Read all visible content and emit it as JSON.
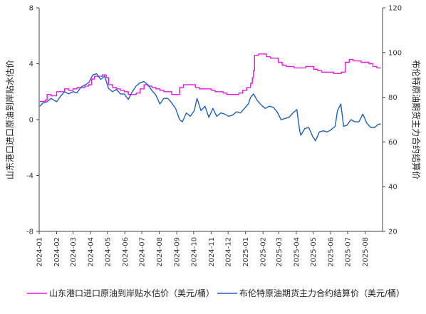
{
  "chart_data": {
    "type": "line",
    "ylabel_left": "山东港口进口原油到岸贴水估价",
    "ylabel_right": "布伦特原油期货主力合约结算价",
    "yleft_range": [
      -8,
      8
    ],
    "yleft_ticks": [
      "8",
      "4",
      "0",
      "-4",
      "-8"
    ],
    "yright_range": [
      20,
      120
    ],
    "yright_ticks": [
      "120",
      "100",
      "80",
      "60",
      "40",
      "20"
    ],
    "x_range": [
      "2024-01-01",
      "2025-09-01"
    ],
    "x_ticks": [
      "2024-01",
      "2024-02",
      "2024-03",
      "2024-04",
      "2024-05",
      "2024-06",
      "2024-07",
      "2024-08",
      "2024-09",
      "2024-10",
      "2024-11",
      "2024-12",
      "2025-01",
      "2025-02",
      "2025-03",
      "2025-04",
      "2025-05",
      "2025-06",
      "2025-07",
      "2025-08"
    ],
    "grid": false,
    "legend_position": "bottom",
    "series": [
      {
        "name": "山东港口进口原油到岸贴水估价（美元/桶）",
        "axis": "left",
        "color": "#e619e6",
        "style": "step",
        "points": [
          [
            "2024-01-02",
            1.3
          ],
          [
            "2024-01-12",
            1.4
          ],
          [
            "2024-01-15",
            1.8
          ],
          [
            "2024-01-22",
            1.7
          ],
          [
            "2024-02-01",
            2.0
          ],
          [
            "2024-02-08",
            2.0
          ],
          [
            "2024-02-15",
            2.2
          ],
          [
            "2024-02-22",
            2.1
          ],
          [
            "2024-03-01",
            2.2
          ],
          [
            "2024-03-08",
            2.3
          ],
          [
            "2024-03-15",
            2.3
          ],
          [
            "2024-03-22",
            2.4
          ],
          [
            "2024-03-29",
            2.5
          ],
          [
            "2024-04-03",
            2.9
          ],
          [
            "2024-04-08",
            3.1
          ],
          [
            "2024-04-15",
            3.1
          ],
          [
            "2024-04-22",
            3.2
          ],
          [
            "2024-04-29",
            3.0
          ],
          [
            "2024-05-03",
            2.5
          ],
          [
            "2024-05-10",
            2.3
          ],
          [
            "2024-05-17",
            2.2
          ],
          [
            "2024-05-24",
            2.1
          ],
          [
            "2024-05-31",
            2.0
          ],
          [
            "2024-06-07",
            1.8
          ],
          [
            "2024-06-14",
            1.8
          ],
          [
            "2024-06-21",
            1.9
          ],
          [
            "2024-06-28",
            2.2
          ],
          [
            "2024-07-05",
            2.5
          ],
          [
            "2024-07-12",
            2.4
          ],
          [
            "2024-07-19",
            2.3
          ],
          [
            "2024-07-26",
            2.2
          ],
          [
            "2024-08-02",
            2.1
          ],
          [
            "2024-08-09",
            2.0
          ],
          [
            "2024-08-16",
            2.0
          ],
          [
            "2024-08-23",
            1.8
          ],
          [
            "2024-08-30",
            1.8
          ],
          [
            "2024-09-06",
            2.3
          ],
          [
            "2024-09-13",
            2.5
          ],
          [
            "2024-09-20",
            2.5
          ],
          [
            "2024-09-27",
            2.5
          ],
          [
            "2024-10-04",
            2.3
          ],
          [
            "2024-10-11",
            2.2
          ],
          [
            "2024-10-18",
            2.2
          ],
          [
            "2024-10-25",
            2.2
          ],
          [
            "2024-11-01",
            2.1
          ],
          [
            "2024-11-08",
            2.0
          ],
          [
            "2024-11-15",
            2.0
          ],
          [
            "2024-11-22",
            1.9
          ],
          [
            "2024-11-29",
            1.8
          ],
          [
            "2024-12-06",
            1.8
          ],
          [
            "2024-12-13",
            1.8
          ],
          [
            "2024-12-20",
            1.9
          ],
          [
            "2024-12-27",
            2.1
          ],
          [
            "2025-01-03",
            2.3
          ],
          [
            "2025-01-10",
            2.6
          ],
          [
            "2025-01-13",
            3.0
          ],
          [
            "2025-01-15",
            3.5
          ],
          [
            "2025-01-17",
            4.6
          ],
          [
            "2025-01-24",
            4.7
          ],
          [
            "2025-01-31",
            4.7
          ],
          [
            "2025-02-07",
            4.5
          ],
          [
            "2025-02-14",
            4.4
          ],
          [
            "2025-02-21",
            4.4
          ],
          [
            "2025-02-28",
            4.1
          ],
          [
            "2025-03-07",
            3.9
          ],
          [
            "2025-03-14",
            3.8
          ],
          [
            "2025-03-21",
            3.8
          ],
          [
            "2025-03-28",
            3.7
          ],
          [
            "2025-04-04",
            3.7
          ],
          [
            "2025-04-11",
            3.7
          ],
          [
            "2025-04-18",
            3.8
          ],
          [
            "2025-04-25",
            3.8
          ],
          [
            "2025-05-02",
            3.6
          ],
          [
            "2025-05-09",
            3.5
          ],
          [
            "2025-05-16",
            3.4
          ],
          [
            "2025-05-23",
            3.4
          ],
          [
            "2025-05-30",
            3.4
          ],
          [
            "2025-06-06",
            3.3
          ],
          [
            "2025-06-13",
            3.3
          ],
          [
            "2025-06-20",
            3.4
          ],
          [
            "2025-06-27",
            4.1
          ],
          [
            "2025-07-04",
            4.3
          ],
          [
            "2025-07-11",
            4.2
          ],
          [
            "2025-07-18",
            4.2
          ],
          [
            "2025-07-25",
            4.1
          ],
          [
            "2025-08-01",
            4.1
          ],
          [
            "2025-08-08",
            4.0
          ],
          [
            "2025-08-15",
            3.8
          ],
          [
            "2025-08-22",
            3.7
          ],
          [
            "2025-08-29",
            3.7
          ]
        ]
      },
      {
        "name": "布伦特原油期货主力合约结算价（美元/桶）",
        "axis": "right",
        "color": "#1f5fc6",
        "style": "line",
        "points": [
          [
            "2024-01-02",
            76.0
          ],
          [
            "2024-01-08",
            77.5
          ],
          [
            "2024-01-15",
            78.0
          ],
          [
            "2024-01-22",
            79.5
          ],
          [
            "2024-02-01",
            78.0
          ],
          [
            "2024-02-08",
            80.5
          ],
          [
            "2024-02-15",
            82.5
          ],
          [
            "2024-02-22",
            81.5
          ],
          [
            "2024-03-01",
            82.5
          ],
          [
            "2024-03-08",
            82.0
          ],
          [
            "2024-03-15",
            84.5
          ],
          [
            "2024-03-22",
            85.5
          ],
          [
            "2024-03-29",
            86.5
          ],
          [
            "2024-04-05",
            90.0
          ],
          [
            "2024-04-12",
            90.5
          ],
          [
            "2024-04-19",
            88.0
          ],
          [
            "2024-04-26",
            89.5
          ],
          [
            "2024-05-03",
            84.0
          ],
          [
            "2024-05-10",
            82.5
          ],
          [
            "2024-05-17",
            83.5
          ],
          [
            "2024-05-24",
            81.5
          ],
          [
            "2024-05-31",
            81.5
          ],
          [
            "2024-06-07",
            79.0
          ],
          [
            "2024-06-14",
            82.5
          ],
          [
            "2024-06-21",
            85.0
          ],
          [
            "2024-06-28",
            86.5
          ],
          [
            "2024-07-05",
            87.0
          ],
          [
            "2024-07-12",
            85.5
          ],
          [
            "2024-07-19",
            83.0
          ],
          [
            "2024-07-26",
            81.0
          ],
          [
            "2024-08-02",
            77.0
          ],
          [
            "2024-08-09",
            79.5
          ],
          [
            "2024-08-16",
            79.5
          ],
          [
            "2024-08-23",
            77.5
          ],
          [
            "2024-08-30",
            75.0
          ],
          [
            "2024-09-06",
            70.0
          ],
          [
            "2024-09-11",
            69.0
          ],
          [
            "2024-09-18",
            73.0
          ],
          [
            "2024-09-25",
            71.5
          ],
          [
            "2024-10-02",
            74.0
          ],
          [
            "2024-10-07",
            79.5
          ],
          [
            "2024-10-14",
            74.0
          ],
          [
            "2024-10-21",
            76.0
          ],
          [
            "2024-10-28",
            71.0
          ],
          [
            "2024-11-04",
            75.0
          ],
          [
            "2024-11-11",
            71.5
          ],
          [
            "2024-11-18",
            73.0
          ],
          [
            "2024-11-25",
            72.5
          ],
          [
            "2024-12-02",
            71.5
          ],
          [
            "2024-12-09",
            72.0
          ],
          [
            "2024-12-16",
            73.5
          ],
          [
            "2024-12-23",
            73.0
          ],
          [
            "2024-12-30",
            75.0
          ],
          [
            "2025-01-06",
            77.0
          ],
          [
            "2025-01-10",
            80.0
          ],
          [
            "2025-01-15",
            81.5
          ],
          [
            "2025-01-22",
            78.5
          ],
          [
            "2025-01-29",
            76.5
          ],
          [
            "2025-02-05",
            75.0
          ],
          [
            "2025-02-12",
            76.0
          ],
          [
            "2025-02-19",
            75.5
          ],
          [
            "2025-02-26",
            73.5
          ],
          [
            "2025-03-05",
            70.0
          ],
          [
            "2025-03-12",
            70.5
          ],
          [
            "2025-03-19",
            71.0
          ],
          [
            "2025-03-26",
            73.0
          ],
          [
            "2025-04-02",
            74.5
          ],
          [
            "2025-04-07",
            65.0
          ],
          [
            "2025-04-09",
            63.0
          ],
          [
            "2025-04-16",
            66.0
          ],
          [
            "2025-04-23",
            66.5
          ],
          [
            "2025-04-30",
            62.5
          ],
          [
            "2025-05-05",
            60.5
          ],
          [
            "2025-05-12",
            64.5
          ],
          [
            "2025-05-19",
            65.0
          ],
          [
            "2025-05-26",
            64.5
          ],
          [
            "2025-06-02",
            65.5
          ],
          [
            "2025-06-09",
            67.0
          ],
          [
            "2025-06-13",
            74.0
          ],
          [
            "2025-06-19",
            77.0
          ],
          [
            "2025-06-24",
            67.0
          ],
          [
            "2025-06-30",
            67.5
          ],
          [
            "2025-07-07",
            70.0
          ],
          [
            "2025-07-14",
            69.0
          ],
          [
            "2025-07-21",
            69.0
          ],
          [
            "2025-07-28",
            72.5
          ],
          [
            "2025-08-04",
            68.5
          ],
          [
            "2025-08-11",
            66.5
          ],
          [
            "2025-08-18",
            66.5
          ],
          [
            "2025-08-25",
            68.0
          ],
          [
            "2025-08-29",
            68.0
          ]
        ]
      }
    ]
  }
}
